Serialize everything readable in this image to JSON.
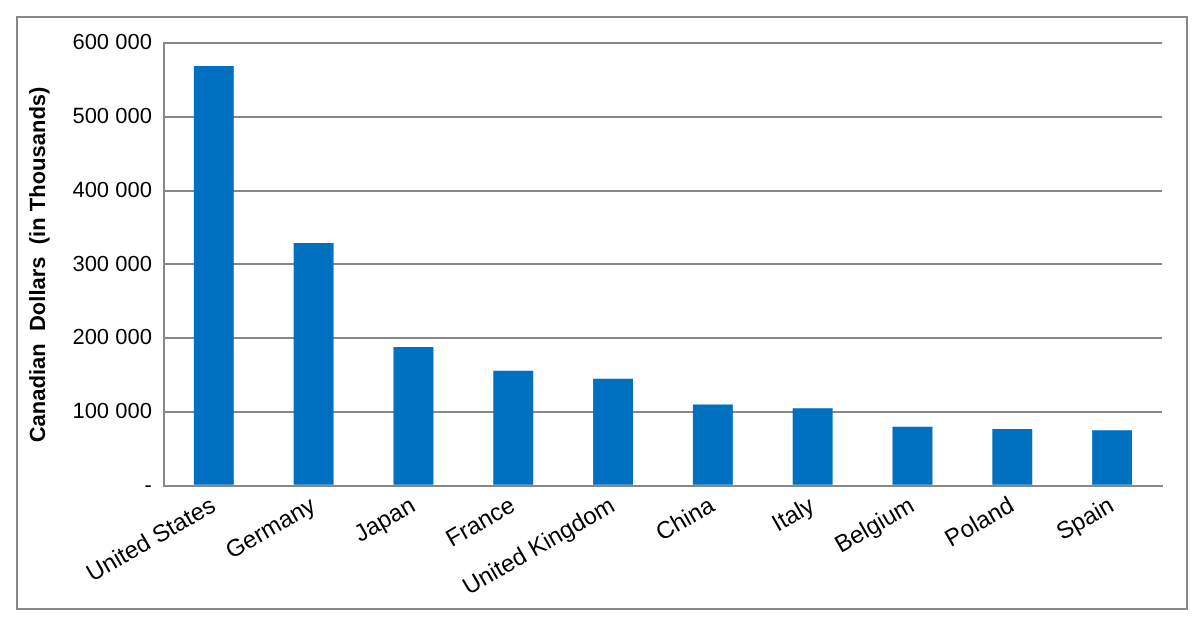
{
  "chart_data": {
    "type": "bar",
    "ylabel": "Canadian  Dollars  (in Thousands)",
    "categories": [
      "United States",
      "Germany",
      "Japan",
      "France",
      "United Kingdom",
      "China",
      "Italy",
      "Belgium",
      "Poland",
      "Spain"
    ],
    "values": [
      569000,
      329000,
      188000,
      156000,
      145000,
      110000,
      105000,
      80000,
      77000,
      75000
    ],
    "color": "#0070c0",
    "ylim": [
      0,
      600000
    ],
    "yticks": [
      {
        "value": 0,
        "label": "-"
      },
      {
        "value": 100000,
        "label": "100 000"
      },
      {
        "value": 200000,
        "label": "200 000"
      },
      {
        "value": 300000,
        "label": "300 000"
      },
      {
        "value": 400000,
        "label": "400 000"
      },
      {
        "value": 500000,
        "label": "500 000"
      },
      {
        "value": 600000,
        "label": "600 000"
      }
    ],
    "grid": "y"
  }
}
